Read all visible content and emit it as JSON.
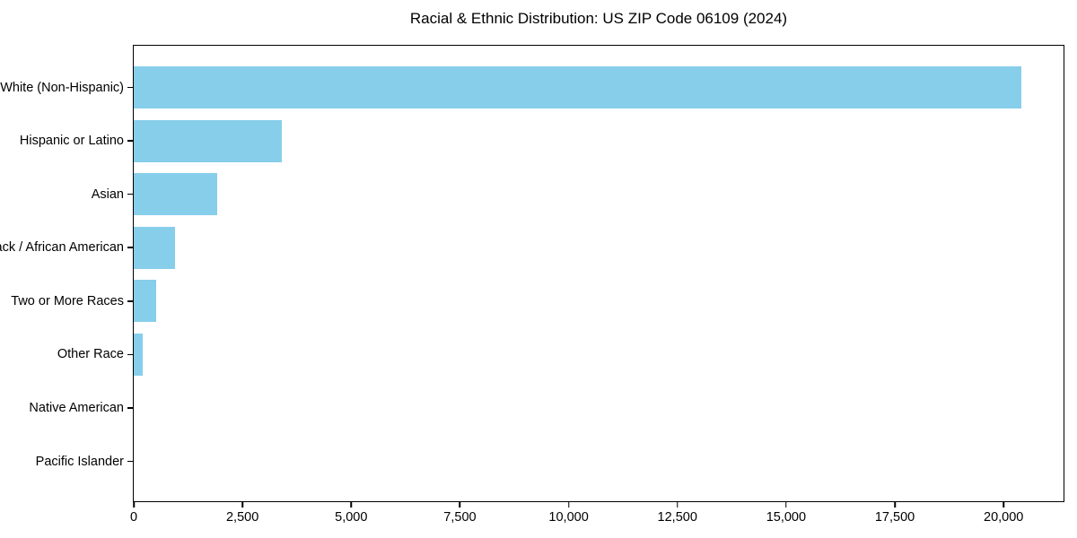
{
  "chart_data": {
    "type": "bar",
    "orientation": "horizontal",
    "title": "Racial & Ethnic Distribution: US ZIP Code 06109 (2024)",
    "categories": [
      "White (Non-Hispanic)",
      "Hispanic or Latino",
      "Asian",
      "Black / African American",
      "Two or More Races",
      "Other Race",
      "Native American",
      "Pacific Islander"
    ],
    "values": [
      20400,
      3400,
      1920,
      940,
      510,
      200,
      0,
      0
    ],
    "xlabel": "",
    "ylabel": "",
    "xlim": [
      0,
      21420
    ],
    "xticks": [
      0,
      2500,
      5000,
      7500,
      10000,
      12500,
      15000,
      17500,
      20000
    ],
    "xtick_labels": [
      "0",
      "2,500",
      "5,000",
      "7,500",
      "10,000",
      "12,500",
      "15,000",
      "17,500",
      "20,000"
    ],
    "bar_color": "#87CEEB",
    "spine_color": "#000000",
    "text_color": "#000000",
    "background_color": "#ffffff",
    "grid": false,
    "legend": null
  }
}
